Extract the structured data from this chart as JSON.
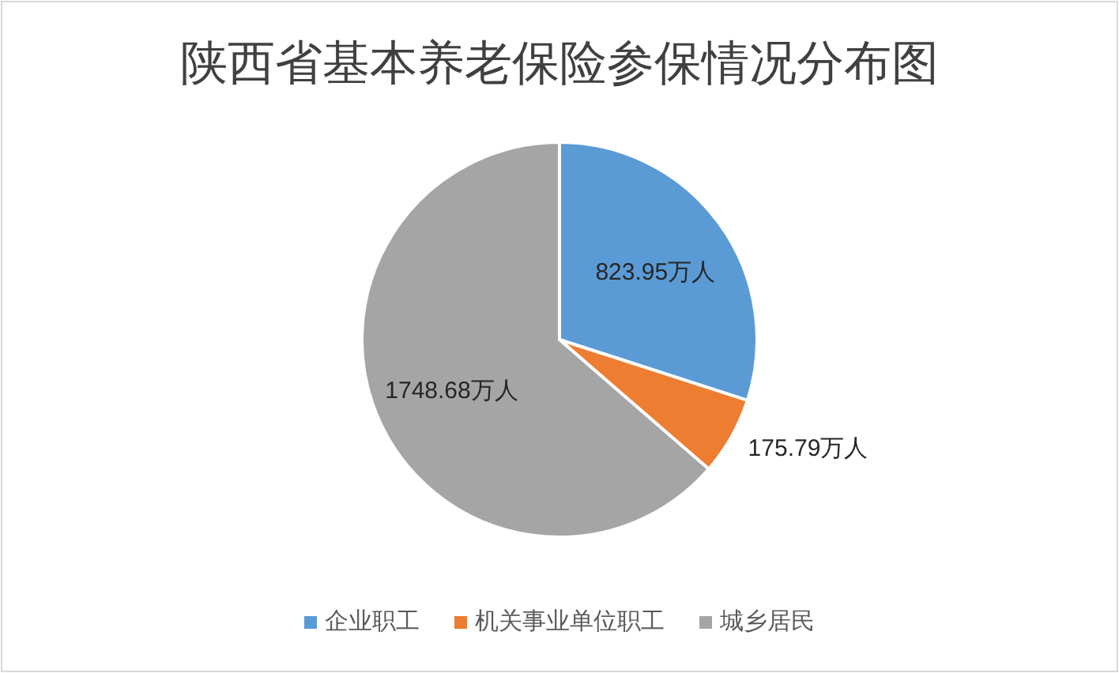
{
  "chart_data": {
    "type": "pie",
    "title": "陕西省基本养老保险参保情况分布图",
    "categories": [
      "企业职工",
      "机关事业单位职工",
      "城乡居民"
    ],
    "values": [
      823.95,
      175.79,
      1748.68
    ],
    "colors": [
      "#5b9bd5",
      "#ed7d31",
      "#a5a5a5"
    ],
    "value_labels": [
      "823.95万人",
      "175.79万人",
      "1748.68万人"
    ],
    "legend": "bottom"
  }
}
